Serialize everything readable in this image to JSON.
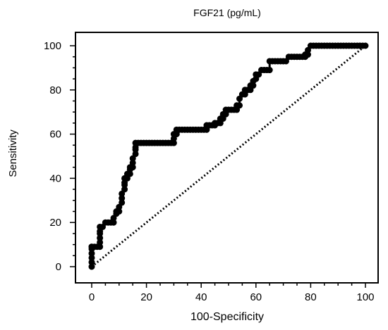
{
  "chart_data": {
    "type": "line",
    "title": "FGF21 (pg/mL)",
    "xlabel": "100-Specificity",
    "ylabel": "Sensitivity",
    "xlim": [
      0,
      100
    ],
    "ylim": [
      0,
      100
    ],
    "x_ticks": [
      0,
      20,
      40,
      60,
      80,
      100
    ],
    "y_ticks": [
      0,
      20,
      40,
      60,
      80,
      100
    ],
    "x_tick_labels": [
      "0",
      "20",
      "40",
      "60",
      "80",
      "100"
    ],
    "y_tick_labels": [
      "0",
      "20",
      "40",
      "60",
      "80",
      "100"
    ],
    "grid": false,
    "series": [
      {
        "style": "step-line-with-markers",
        "color": "#000000",
        "x": [
          0,
          0,
          0,
          0,
          0,
          0,
          0,
          1,
          2,
          3,
          3,
          3,
          3,
          3,
          3,
          4,
          5,
          6,
          7,
          8,
          8,
          9,
          9,
          10,
          10,
          11,
          11,
          11,
          12,
          12,
          12,
          12,
          13,
          13,
          14,
          14,
          14,
          15,
          15,
          15,
          16,
          16,
          16,
          16,
          17,
          18,
          19,
          20,
          21,
          22,
          23,
          24,
          25,
          26,
          27,
          28,
          29,
          30,
          30,
          30,
          31,
          31,
          32,
          33,
          34,
          35,
          36,
          37,
          38,
          39,
          40,
          41,
          42,
          42,
          43,
          44,
          45,
          45,
          46,
          47,
          47,
          48,
          48,
          49,
          49,
          50,
          51,
          52,
          53,
          53,
          54,
          54,
          55,
          56,
          56,
          57,
          58,
          58,
          59,
          59,
          60,
          60,
          61,
          62,
          63,
          64,
          65,
          65,
          66,
          67,
          68,
          69,
          70,
          71,
          72,
          73,
          74,
          75,
          76,
          77,
          78,
          78,
          79,
          79,
          80,
          81,
          82,
          83,
          84,
          85,
          86,
          87,
          88,
          89,
          90,
          91,
          92,
          93,
          94,
          95,
          96,
          97,
          98,
          99,
          100
        ],
        "y": [
          0,
          2,
          4,
          6,
          8,
          9,
          9,
          9,
          9,
          9,
          11,
          13,
          15,
          16,
          18,
          18,
          20,
          20,
          20,
          20,
          22,
          24,
          25,
          25,
          27,
          29,
          31,
          33,
          35,
          37,
          38,
          40,
          40,
          42,
          42,
          44,
          45,
          45,
          47,
          49,
          51,
          53,
          54,
          56,
          56,
          56,
          56,
          56,
          56,
          56,
          56,
          56,
          56,
          56,
          56,
          56,
          56,
          56,
          58,
          60,
          60,
          62,
          62,
          62,
          62,
          62,
          62,
          62,
          62,
          62,
          62,
          62,
          62,
          64,
          64,
          64,
          64,
          65,
          65,
          65,
          67,
          67,
          69,
          69,
          71,
          71,
          71,
          71,
          71,
          73,
          73,
          76,
          78,
          78,
          80,
          80,
          80,
          82,
          82,
          84,
          85,
          87,
          87,
          89,
          89,
          89,
          89,
          93,
          93,
          93,
          93,
          93,
          93,
          93,
          95,
          95,
          95,
          95,
          95,
          95,
          95,
          96,
          96,
          98,
          100,
          100,
          100,
          100,
          100,
          100,
          100,
          100,
          100,
          100,
          100,
          100,
          100,
          100,
          100,
          100,
          100,
          100,
          100,
          100,
          100
        ]
      },
      {
        "style": "dotted-reference",
        "color": "#000000",
        "x": [
          0,
          100
        ],
        "y": [
          0,
          100
        ]
      }
    ]
  }
}
